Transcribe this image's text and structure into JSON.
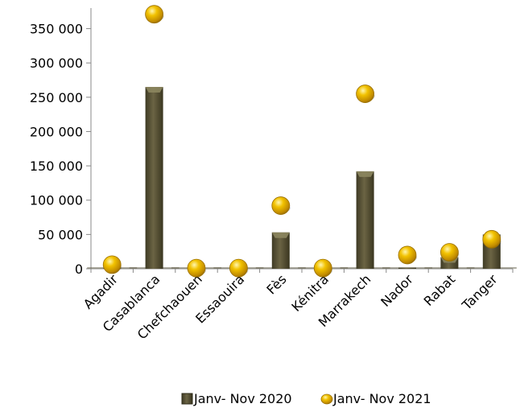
{
  "chart_data": {
    "type": "bar",
    "categories": [
      "Agadir",
      "Casablanca",
      "Chefchaouen",
      "Essaouira",
      "Fès",
      "Kénitra",
      "Marrakech",
      "Nador",
      "Rabat",
      "Tanger"
    ],
    "series": [
      {
        "name": "Janv- Nov 2020",
        "type": "bar",
        "color": "#5a5437",
        "values": [
          700,
          265000,
          300,
          300,
          53000,
          500,
          142000,
          1500,
          17000,
          50000
        ]
      },
      {
        "name": "Janv- Nov 2021",
        "type": "scatter",
        "color": "#e8b800",
        "values": [
          6000,
          371000,
          1000,
          1000,
          92000,
          1000,
          255000,
          20000,
          24000,
          43000
        ]
      }
    ],
    "yticks": [
      "0",
      "50 000",
      "100 000",
      "150 000",
      "200 000",
      "250 000",
      "300 000",
      "350 000"
    ],
    "ylim": [
      0,
      380000
    ],
    "title": "",
    "xlabel": "",
    "ylabel": "",
    "grid": false,
    "legend_position": "bottom"
  }
}
